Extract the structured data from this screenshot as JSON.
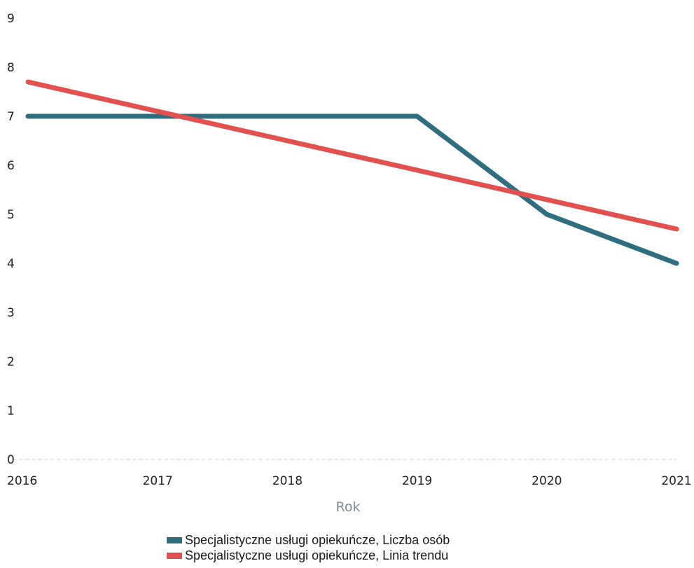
{
  "chart_data": {
    "type": "line",
    "x": [
      2016,
      2017,
      2018,
      2019,
      2020,
      2021
    ],
    "x_tick_labels": [
      "2016",
      "2017",
      "2018",
      "2019",
      "2020",
      "2021"
    ],
    "xlabel": "Rok",
    "ylabel": "",
    "ylim": [
      0,
      9
    ],
    "y_ticks": [
      0,
      1,
      2,
      3,
      4,
      5,
      6,
      7,
      8,
      9
    ],
    "grid": false,
    "legend_position": "bottom",
    "series": [
      {
        "name": "Specjalistyczne usługi opiekuńcze, Liczba osób",
        "values": [
          7,
          7,
          7,
          7,
          5,
          4
        ],
        "color": "#2e6e7e"
      },
      {
        "name": "Specjalistyczne usługi opiekuńcze, Linia trendu",
        "values": [
          7.7,
          7.1,
          6.5,
          5.9,
          5.3,
          4.7
        ],
        "color": "#e0514f"
      }
    ]
  }
}
